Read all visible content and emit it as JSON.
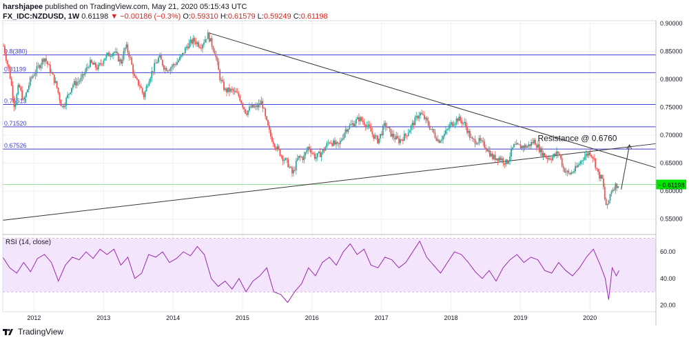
{
  "header": {
    "author": "harshjapee",
    "published": " published on TradingView.com, May 21, 2020 05:15:43 UTC",
    "symbol": "FX_IDC:NZDUSD, 1W",
    "last": "0.61198",
    "change": "▼ −0.00186 (−0.3%)",
    "o_label": "O:",
    "o": "0.59310",
    "h_label": "H:",
    "h": "0.61579",
    "l_label": "L:",
    "l": "0.59249",
    "c_label": "C:",
    "c": "0.61198"
  },
  "footer": {
    "brand": "TradingView"
  },
  "colors": {
    "up": "#26a69a",
    "down": "#ef5350",
    "level_line": "#3f3fd9",
    "trend_line": "#333333",
    "rsi_line": "#9c27b0",
    "rsi_band": "#f3e5fb",
    "price_tag": "#00e600"
  },
  "chart_data": [
    {
      "type": "candlestick",
      "title": "FX_IDC:NZDUSD, 1W",
      "x_ticks": [
        "2012",
        "2013",
        "2014",
        "2015",
        "2016",
        "2017",
        "2018",
        "2019",
        "2020"
      ],
      "y_ticks": [
        "0.90000",
        "0.85000",
        "0.80000",
        "0.75000",
        "0.70000",
        "0.65000",
        "0.60000",
        "0.55000"
      ],
      "ylim": [
        0.525,
        0.905
      ],
      "xlim": [
        2011.55,
        2020.95
      ],
      "grid": true,
      "last_price": 0.61198,
      "last_price_label": "0.61198",
      "horizontal_levels": [
        {
          "label": "0.8(380)",
          "value": 0.8438
        },
        {
          "label": "0.81199",
          "value": 0.812
        },
        {
          "label": "0.75513",
          "value": 0.7551
        },
        {
          "label": "0.71520",
          "value": 0.7152
        },
        {
          "label": "0.67526",
          "value": 0.6753
        }
      ],
      "trendlines": [
        {
          "from": [
            2014.52,
            0.883
          ],
          "to": [
            2020.95,
            0.642
          ]
        },
        {
          "from": [
            2011.55,
            0.548
          ],
          "to": [
            2020.95,
            0.685
          ]
        }
      ],
      "annotation": {
        "text": "Resistance @ 0.6760",
        "x": 2019.25,
        "y": 0.69,
        "arrow_from": [
          2020.45,
          0.603
        ],
        "arrow_to": [
          2020.57,
          0.683
        ]
      },
      "price_path": [
        [
          2011.56,
          0.86
        ],
        [
          2011.65,
          0.81
        ],
        [
          2011.72,
          0.75
        ],
        [
          2011.78,
          0.79
        ],
        [
          2011.85,
          0.76
        ],
        [
          2011.95,
          0.8
        ],
        [
          2012.05,
          0.82
        ],
        [
          2012.15,
          0.84
        ],
        [
          2012.22,
          0.82
        ],
        [
          2012.32,
          0.79
        ],
        [
          2012.4,
          0.75
        ],
        [
          2012.45,
          0.76
        ],
        [
          2012.55,
          0.79
        ],
        [
          2012.68,
          0.8
        ],
        [
          2012.8,
          0.83
        ],
        [
          2012.92,
          0.82
        ],
        [
          2013.02,
          0.84
        ],
        [
          2013.15,
          0.85
        ],
        [
          2013.25,
          0.83
        ],
        [
          2013.32,
          0.86
        ],
        [
          2013.38,
          0.84
        ],
        [
          2013.45,
          0.8
        ],
        [
          2013.52,
          0.79
        ],
        [
          2013.58,
          0.77
        ],
        [
          2013.65,
          0.8
        ],
        [
          2013.72,
          0.82
        ],
        [
          2013.8,
          0.84
        ],
        [
          2013.88,
          0.82
        ],
        [
          2013.95,
          0.82
        ],
        [
          2014.05,
          0.83
        ],
        [
          2014.12,
          0.84
        ],
        [
          2014.2,
          0.86
        ],
        [
          2014.3,
          0.87
        ],
        [
          2014.4,
          0.86
        ],
        [
          2014.5,
          0.88
        ],
        [
          2014.6,
          0.85
        ],
        [
          2014.68,
          0.8
        ],
        [
          2014.75,
          0.78
        ],
        [
          2014.85,
          0.78
        ],
        [
          2014.95,
          0.77
        ],
        [
          2015.05,
          0.74
        ],
        [
          2015.12,
          0.75
        ],
        [
          2015.2,
          0.75
        ],
        [
          2015.28,
          0.76
        ],
        [
          2015.33,
          0.73
        ],
        [
          2015.4,
          0.7
        ],
        [
          2015.48,
          0.68
        ],
        [
          2015.58,
          0.66
        ],
        [
          2015.65,
          0.65
        ],
        [
          2015.72,
          0.63
        ],
        [
          2015.8,
          0.66
        ],
        [
          2015.88,
          0.66
        ],
        [
          2015.95,
          0.68
        ],
        [
          2016.05,
          0.66
        ],
        [
          2016.15,
          0.67
        ],
        [
          2016.25,
          0.69
        ],
        [
          2016.38,
          0.68
        ],
        [
          2016.48,
          0.71
        ],
        [
          2016.58,
          0.72
        ],
        [
          2016.68,
          0.73
        ],
        [
          2016.78,
          0.72
        ],
        [
          2016.88,
          0.7
        ],
        [
          2016.95,
          0.69
        ],
        [
          2017.05,
          0.72
        ],
        [
          2017.15,
          0.7
        ],
        [
          2017.25,
          0.69
        ],
        [
          2017.35,
          0.7
        ],
        [
          2017.45,
          0.72
        ],
        [
          2017.55,
          0.74
        ],
        [
          2017.62,
          0.73
        ],
        [
          2017.72,
          0.71
        ],
        [
          2017.82,
          0.69
        ],
        [
          2017.9,
          0.7
        ],
        [
          2018.0,
          0.72
        ],
        [
          2018.1,
          0.73
        ],
        [
          2018.2,
          0.72
        ],
        [
          2018.3,
          0.69
        ],
        [
          2018.4,
          0.69
        ],
        [
          2018.5,
          0.68
        ],
        [
          2018.6,
          0.66
        ],
        [
          2018.7,
          0.66
        ],
        [
          2018.8,
          0.65
        ],
        [
          2018.9,
          0.68
        ],
        [
          2019.0,
          0.68
        ],
        [
          2019.1,
          0.68
        ],
        [
          2019.2,
          0.69
        ],
        [
          2019.3,
          0.67
        ],
        [
          2019.38,
          0.66
        ],
        [
          2019.45,
          0.66
        ],
        [
          2019.55,
          0.67
        ],
        [
          2019.62,
          0.64
        ],
        [
          2019.7,
          0.63
        ],
        [
          2019.8,
          0.64
        ],
        [
          2019.9,
          0.66
        ],
        [
          2020.0,
          0.67
        ],
        [
          2020.05,
          0.66
        ],
        [
          2020.12,
          0.63
        ],
        [
          2020.18,
          0.62
        ],
        [
          2020.22,
          0.58
        ],
        [
          2020.25,
          0.57
        ],
        [
          2020.3,
          0.6
        ],
        [
          2020.36,
          0.61
        ],
        [
          2020.41,
          0.61198
        ]
      ]
    },
    {
      "type": "line",
      "title": "RSI (14, close)",
      "y_ticks": [
        "60.00",
        "40.00",
        "20.00"
      ],
      "ylim": [
        15,
        72
      ],
      "band": [
        30,
        70
      ],
      "xlim": [
        2011.55,
        2020.95
      ],
      "series": [
        {
          "x": [
            2011.55,
            2011.65,
            2011.75,
            2011.85,
            2011.95,
            2012.05,
            2012.15,
            2012.25,
            2012.35,
            2012.45,
            2012.55,
            2012.65,
            2012.75,
            2012.85,
            2012.95,
            2013.05,
            2013.15,
            2013.25,
            2013.35,
            2013.45,
            2013.55,
            2013.65,
            2013.75,
            2013.85,
            2013.95,
            2014.05,
            2014.15,
            2014.25,
            2014.35,
            2014.45,
            2014.55,
            2014.65,
            2014.75,
            2014.85,
            2014.95,
            2015.05,
            2015.15,
            2015.25,
            2015.35,
            2015.45,
            2015.55,
            2015.65,
            2015.75,
            2015.85,
            2015.95,
            2016.05,
            2016.15,
            2016.25,
            2016.35,
            2016.45,
            2016.55,
            2016.65,
            2016.75,
            2016.85,
            2016.95,
            2017.05,
            2017.15,
            2017.25,
            2017.35,
            2017.45,
            2017.55,
            2017.65,
            2017.75,
            2017.85,
            2017.95,
            2018.05,
            2018.15,
            2018.25,
            2018.35,
            2018.45,
            2018.55,
            2018.65,
            2018.75,
            2018.85,
            2018.95,
            2019.05,
            2019.15,
            2019.25,
            2019.35,
            2019.45,
            2019.55,
            2019.65,
            2019.75,
            2019.85,
            2019.95,
            2020.05,
            2020.15,
            2020.22,
            2020.27,
            2020.32,
            2020.38,
            2020.42
          ],
          "y": [
            56,
            48,
            44,
            52,
            45,
            55,
            58,
            52,
            38,
            50,
            56,
            54,
            60,
            55,
            62,
            58,
            62,
            50,
            56,
            40,
            44,
            58,
            56,
            60,
            52,
            55,
            60,
            57,
            64,
            58,
            40,
            34,
            38,
            32,
            40,
            30,
            38,
            42,
            48,
            30,
            28,
            22,
            30,
            36,
            48,
            42,
            52,
            56,
            50,
            60,
            66,
            58,
            62,
            50,
            48,
            56,
            54,
            48,
            52,
            60,
            68,
            56,
            50,
            44,
            52,
            60,
            58,
            52,
            45,
            40,
            46,
            38,
            48,
            54,
            58,
            52,
            56,
            54,
            46,
            44,
            52,
            46,
            42,
            48,
            56,
            62,
            50,
            40,
            24,
            48,
            42,
            46
          ]
        }
      ]
    }
  ]
}
